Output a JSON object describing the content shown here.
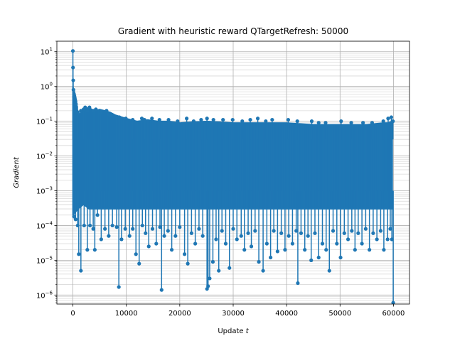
{
  "chart_data": {
    "type": "line",
    "title": "Gradient with heuristic reward QTargetRefresh: 50000",
    "xlabel_prefix": "Update ",
    "xlabel_var": "t",
    "ylabel": "Gradient",
    "x_ticks": [
      "0",
      "10000",
      "20000",
      "30000",
      "40000",
      "50000",
      "60000"
    ],
    "x_tick_values": [
      0,
      10000,
      20000,
      30000,
      40000,
      50000,
      60000
    ],
    "y_ticks": [
      {
        "base": "10",
        "exp": "1",
        "value": 10
      },
      {
        "base": "10",
        "exp": "0",
        "value": 1
      },
      {
        "base": "10",
        "exp": "−1",
        "value": 0.1
      },
      {
        "base": "10",
        "exp": "−2",
        "value": 0.01
      },
      {
        "base": "10",
        "exp": "−3",
        "value": 0.001
      },
      {
        "base": "10",
        "exp": "−4",
        "value": 0.0001
      },
      {
        "base": "10",
        "exp": "−5",
        "value": 1e-05
      },
      {
        "base": "10",
        "exp": "−6",
        "value": 1e-06
      }
    ],
    "xlim": [
      -3000,
      63000
    ],
    "ylim": [
      5.5e-07,
      20
    ],
    "y_scale": "log",
    "grid": true,
    "series": [
      {
        "color": "#1f77b4",
        "band": {
          "x": [
            0,
            1000,
            2000,
            3000,
            4000,
            5000,
            6000,
            7000,
            8000,
            10000,
            12000,
            14000,
            16000,
            18000,
            20000,
            25000,
            30000,
            35000,
            40000,
            45000,
            50000,
            55000,
            58000,
            59000,
            59800
          ],
          "upper": [
            1,
            0.15,
            0.22,
            0.25,
            0.2,
            0.22,
            0.2,
            0.18,
            0.15,
            0.12,
            0.1,
            0.11,
            0.1,
            0.1,
            0.09,
            0.1,
            0.09,
            0.09,
            0.09,
            0.08,
            0.08,
            0.08,
            0.09,
            0.09,
            0.1
          ],
          "lower": [
            0.0002,
            0.0003,
            0.0004,
            0.0003,
            0.0003,
            0.0003,
            0.0003,
            0.0003,
            0.0003,
            0.0003,
            0.0003,
            0.0003,
            0.0003,
            0.0003,
            0.0003,
            0.0003,
            0.0003,
            0.0003,
            0.0003,
            0.0003,
            0.0003,
            0.0003,
            0.0003,
            0.0003,
            0.0003
          ]
        },
        "peaks": [
          [
            0,
            10.5
          ],
          [
            20,
            3.5
          ],
          [
            60,
            1.5
          ],
          [
            100,
            0.8
          ],
          [
            200,
            0.5
          ],
          [
            300,
            0.2
          ],
          [
            900,
            0.18
          ],
          [
            1500,
            0.2
          ],
          [
            2000,
            0.22
          ],
          [
            2300,
            0.25
          ],
          [
            2700,
            0.2
          ],
          [
            3100,
            0.25
          ],
          [
            3800,
            0.2
          ],
          [
            4300,
            0.22
          ],
          [
            5200,
            0.18
          ],
          [
            6300,
            0.2
          ],
          [
            6600,
            0.16
          ],
          [
            7000,
            0.15
          ],
          [
            8700,
            0.13
          ],
          [
            9900,
            0.12
          ],
          [
            11200,
            0.11
          ],
          [
            12900,
            0.12
          ],
          [
            13400,
            0.11
          ],
          [
            14800,
            0.12
          ],
          [
            16200,
            0.11
          ],
          [
            17900,
            0.11
          ],
          [
            19600,
            0.1
          ],
          [
            21300,
            0.12
          ],
          [
            22600,
            0.1
          ],
          [
            24000,
            0.11
          ],
          [
            25100,
            0.12
          ],
          [
            26300,
            0.11
          ],
          [
            28100,
            0.11
          ],
          [
            29900,
            0.11
          ],
          [
            31700,
            0.1
          ],
          [
            33200,
            0.11
          ],
          [
            34600,
            0.12
          ],
          [
            36100,
            0.1
          ],
          [
            37300,
            0.11
          ],
          [
            40300,
            0.11
          ],
          [
            42000,
            0.1
          ],
          [
            44700,
            0.1
          ],
          [
            46000,
            0.09
          ],
          [
            47300,
            0.09
          ],
          [
            50200,
            0.1
          ],
          [
            52100,
            0.09
          ],
          [
            54300,
            0.09
          ],
          [
            56000,
            0.09
          ],
          [
            58100,
            0.1
          ],
          [
            59000,
            0.12
          ],
          [
            59600,
            0.13
          ],
          [
            59900,
            0.1
          ]
        ],
        "dips": [
          [
            200,
            0.00018
          ],
          [
            500,
            0.00015
          ],
          [
            900,
            0.0001
          ],
          [
            1100,
            1.5e-05
          ],
          [
            1500,
            5e-06
          ],
          [
            2100,
            0.0001
          ],
          [
            2700,
            2e-05
          ],
          [
            3200,
            0.0001
          ],
          [
            3800,
            8e-05
          ],
          [
            4100,
            2e-05
          ],
          [
            4600,
            0.0002
          ],
          [
            5300,
            4e-05
          ],
          [
            6000,
            8e-05
          ],
          [
            6700,
            5e-05
          ],
          [
            7400,
            0.0001
          ],
          [
            8200,
            9e-05
          ],
          [
            8600,
            1.7e-06
          ],
          [
            9100,
            4e-05
          ],
          [
            9800,
            8e-05
          ],
          [
            10600,
            5e-05
          ],
          [
            11200,
            8e-05
          ],
          [
            11800,
            1.5e-05
          ],
          [
            12400,
            8e-06
          ],
          [
            13000,
            0.0001
          ],
          [
            13600,
            6e-05
          ],
          [
            14200,
            2.5e-05
          ],
          [
            14900,
            8e-05
          ],
          [
            15600,
            3e-05
          ],
          [
            16300,
            9e-05
          ],
          [
            16600,
            1.4e-06
          ],
          [
            17100,
            5e-05
          ],
          [
            17800,
            7e-05
          ],
          [
            18500,
            2e-05
          ],
          [
            19200,
            5e-05
          ],
          [
            20000,
            9e-05
          ],
          [
            20900,
            1.5e-05
          ],
          [
            21500,
            8e-06
          ],
          [
            22200,
            6e-05
          ],
          [
            22900,
            3e-05
          ],
          [
            23600,
            8e-05
          ],
          [
            24300,
            5e-05
          ],
          [
            25100,
            1.5e-06
          ],
          [
            25300,
            1.8e-06
          ],
          [
            25600,
            3e-06
          ],
          [
            26200,
            9e-06
          ],
          [
            26800,
            4e-05
          ],
          [
            27300,
            5e-06
          ],
          [
            27900,
            7e-05
          ],
          [
            28600,
            3e-05
          ],
          [
            29300,
            6e-06
          ],
          [
            30000,
            8e-05
          ],
          [
            30700,
            4e-05
          ],
          [
            31500,
            5e-05
          ],
          [
            32100,
            2e-05
          ],
          [
            32800,
            6e-05
          ],
          [
            33400,
            2.5e-05
          ],
          [
            34100,
            7e-05
          ],
          [
            34800,
            9e-06
          ],
          [
            35600,
            5e-06
          ],
          [
            36300,
            3e-05
          ],
          [
            37000,
            1.2e-05
          ],
          [
            37600,
            7e-05
          ],
          [
            38300,
            1.8e-05
          ],
          [
            39000,
            6e-05
          ],
          [
            39700,
            2e-05
          ],
          [
            40400,
            5e-05
          ],
          [
            41100,
            3e-05
          ],
          [
            41800,
            7e-05
          ],
          [
            42100,
            2.2e-06
          ],
          [
            42700,
            6e-05
          ],
          [
            43400,
            2e-05
          ],
          [
            44000,
            5e-05
          ],
          [
            44600,
            1e-05
          ],
          [
            45300,
            6e-05
          ],
          [
            46000,
            1.2e-05
          ],
          [
            46700,
            3e-05
          ],
          [
            47400,
            2e-05
          ],
          [
            48000,
            5e-06
          ],
          [
            48700,
            7e-05
          ],
          [
            49400,
            3e-05
          ],
          [
            50100,
            1.2e-05
          ],
          [
            50800,
            6e-05
          ],
          [
            51500,
            4e-05
          ],
          [
            52200,
            7e-05
          ],
          [
            52800,
            2e-05
          ],
          [
            53400,
            6e-05
          ],
          [
            54100,
            3e-05
          ],
          [
            54800,
            8e-05
          ],
          [
            55500,
            2e-05
          ],
          [
            56200,
            6e-05
          ],
          [
            56900,
            4e-05
          ],
          [
            57600,
            7e-05
          ],
          [
            58200,
            2e-05
          ],
          [
            58900,
            4e-05
          ],
          [
            59400,
            8e-05
          ],
          [
            59700,
            4e-05
          ],
          [
            59950,
            6e-07
          ]
        ]
      }
    ]
  }
}
